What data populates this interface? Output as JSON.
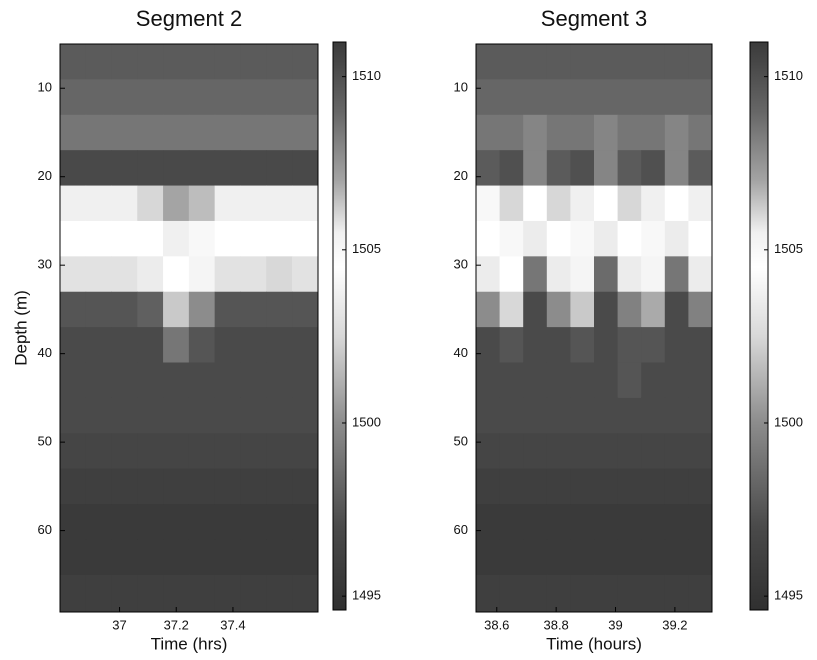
{
  "chart_data": [
    {
      "type": "heatmap",
      "title": "Segment 2",
      "xlabel": "Time (hrs)",
      "ylabel": "Depth (m)",
      "x": [
        36.835,
        36.926,
        37.017,
        37.108,
        37.199,
        37.29,
        37.381,
        37.472,
        37.563,
        37.654
      ],
      "y": [
        7,
        11,
        15,
        19,
        23,
        27,
        31,
        35,
        39,
        43,
        47,
        51,
        55,
        59,
        63,
        67
      ],
      "z": [
        [
          1509.5,
          1509.5,
          1509.5,
          1509.5,
          1509.5,
          1509.5,
          1509.5,
          1509.5,
          1509.5,
          1509.5
        ],
        [
          1509,
          1509,
          1509,
          1509,
          1509,
          1509,
          1509,
          1509,
          1509,
          1509
        ],
        [
          1508.5,
          1508.5,
          1508.5,
          1508.5,
          1508.5,
          1508.5,
          1508.5,
          1508.5,
          1508.5,
          1508.5
        ],
        [
          1510.3,
          1510.3,
          1510.3,
          1510.3,
          1510.3,
          1510.3,
          1510.3,
          1510.3,
          1510.3,
          1510.3
        ],
        [
          1505.5,
          1505.5,
          1505.5,
          1506,
          1507,
          1506.5,
          1505.5,
          1505.5,
          1505.5,
          1505.5
        ],
        [
          1504.5,
          1504.5,
          1504.5,
          1504.5,
          1505.5,
          1505,
          1504.5,
          1504.5,
          1504.5,
          1504.5
        ],
        [
          1503,
          1503,
          1503,
          1503.5,
          1504.5,
          1504,
          1503,
          1503,
          1502.5,
          1503
        ],
        [
          1497.5,
          1497.5,
          1497.5,
          1498,
          1502,
          1500,
          1497.5,
          1497.5,
          1497.5,
          1497.5
        ],
        [
          1497,
          1497,
          1497,
          1497,
          1499,
          1497.5,
          1497,
          1497,
          1497,
          1497
        ],
        [
          1497,
          1497,
          1497,
          1497,
          1497,
          1497,
          1497,
          1497,
          1497,
          1497
        ],
        [
          1497,
          1497,
          1497,
          1497,
          1497,
          1497,
          1497,
          1497,
          1497,
          1497
        ],
        [
          1496.5,
          1496.5,
          1496.5,
          1496.5,
          1496.5,
          1496.5,
          1496.5,
          1496.5,
          1496.5,
          1496.5
        ],
        [
          1496,
          1496,
          1496,
          1496,
          1496,
          1496,
          1496,
          1496,
          1496,
          1496
        ],
        [
          1495.5,
          1495.5,
          1495.5,
          1495.5,
          1495.5,
          1495.5,
          1495.5,
          1495.5,
          1495.5,
          1495.5
        ],
        [
          1495.5,
          1495.5,
          1495.5,
          1495.5,
          1495.5,
          1495.5,
          1495.5,
          1495.5,
          1495.5,
          1495.5
        ],
        [
          1496,
          1496,
          1496,
          1496,
          1496,
          1496,
          1496,
          1496,
          1496,
          1496
        ]
      ],
      "xlim": [
        36.79,
        37.7
      ],
      "ylim": [
        5,
        69.2
      ],
      "y_reversed": true,
      "xticks": [
        37,
        37.2,
        37.4
      ],
      "yticks": [
        10,
        20,
        30,
        40,
        50,
        60
      ],
      "clim": [
        1494.6,
        1511
      ],
      "cticks": [
        1495,
        1500,
        1505,
        1510
      ],
      "colorscale": [
        {
          "value": 1494.6,
          "color": "#303030"
        },
        {
          "value": 1497,
          "color": "#4a4a4a"
        },
        {
          "value": 1500,
          "color": "#8c8c8c"
        },
        {
          "value": 1502.5,
          "color": "#d8d8d8"
        },
        {
          "value": 1504.5,
          "color": "#ffffff"
        },
        {
          "value": 1505.5,
          "color": "#f0f0f0"
        },
        {
          "value": 1507,
          "color": "#a4a4a4"
        },
        {
          "value": 1509,
          "color": "#666666"
        },
        {
          "value": 1511,
          "color": "#3a3a3a"
        }
      ]
    },
    {
      "type": "heatmap",
      "title": "Segment 3",
      "xlabel": "Time (hours)",
      "x": [
        38.57,
        38.649,
        38.729,
        38.808,
        38.888,
        38.967,
        39.047,
        39.126,
        39.206,
        39.285
      ],
      "y": [
        7,
        11,
        15,
        19,
        23,
        27,
        31,
        35,
        39,
        43,
        47,
        51,
        55,
        59,
        63,
        67
      ],
      "z": [
        [
          1509.5,
          1509.5,
          1509.5,
          1509.5,
          1509.5,
          1509.5,
          1509.5,
          1509.5,
          1509.5,
          1509.5
        ],
        [
          1509,
          1509,
          1509,
          1509,
          1509,
          1509,
          1509,
          1509,
          1509,
          1509
        ],
        [
          1508.5,
          1508.5,
          1508,
          1508.5,
          1508.5,
          1508,
          1508.5,
          1508.5,
          1508,
          1508.5
        ],
        [
          1509.5,
          1510,
          1508,
          1509.5,
          1510,
          1508,
          1509.5,
          1510,
          1508,
          1509.5
        ],
        [
          1505,
          1506,
          1504.5,
          1506,
          1505.5,
          1504.5,
          1506,
          1505.5,
          1504.5,
          1505.5
        ],
        [
          1504.5,
          1505,
          1503.5,
          1504.5,
          1505,
          1503.5,
          1504.5,
          1505,
          1503.5,
          1504.5
        ],
        [
          1503.5,
          1504.5,
          1499,
          1503.5,
          1504,
          1498.5,
          1503.5,
          1504,
          1499,
          1503.5
        ],
        [
          1500,
          1502.5,
          1497,
          1500,
          1502,
          1497,
          1499.5,
          1501,
          1497,
          1499.5
        ],
        [
          1497,
          1497.5,
          1497,
          1497,
          1497.5,
          1497,
          1497.5,
          1497.5,
          1497,
          1497
        ],
        [
          1497,
          1497,
          1497,
          1497,
          1497,
          1497,
          1497.5,
          1497,
          1497,
          1497
        ],
        [
          1497,
          1497,
          1497,
          1497,
          1497,
          1497,
          1497,
          1497,
          1497,
          1497
        ],
        [
          1496.5,
          1496.5,
          1496.5,
          1496.5,
          1496.5,
          1496.5,
          1496.5,
          1496.5,
          1496.5,
          1496.5
        ],
        [
          1496,
          1496,
          1496,
          1496,
          1496,
          1496,
          1496,
          1496,
          1496,
          1496
        ],
        [
          1495.5,
          1495.5,
          1495.5,
          1495.5,
          1495.5,
          1495.5,
          1495.5,
          1495.5,
          1495.5,
          1495.5
        ],
        [
          1495.5,
          1495.5,
          1495.5,
          1495.5,
          1495.5,
          1495.5,
          1495.5,
          1495.5,
          1495.5,
          1495.5
        ],
        [
          1496,
          1496,
          1496,
          1496,
          1496,
          1496,
          1496,
          1496,
          1496,
          1496
        ]
      ],
      "xlim": [
        38.53,
        39.325
      ],
      "ylim": [
        5,
        69.2
      ],
      "y_reversed": true,
      "xticks": [
        38.6,
        38.8,
        39,
        39.2
      ],
      "yticks": [
        10,
        20,
        30,
        40,
        50,
        60
      ],
      "clim": [
        1494.6,
        1511
      ],
      "cticks": [
        1495,
        1500,
        1505,
        1510
      ],
      "colorscale": [
        {
          "value": 1494.6,
          "color": "#303030"
        },
        {
          "value": 1497,
          "color": "#4a4a4a"
        },
        {
          "value": 1500,
          "color": "#8c8c8c"
        },
        {
          "value": 1502.5,
          "color": "#d8d8d8"
        },
        {
          "value": 1504.5,
          "color": "#ffffff"
        },
        {
          "value": 1505.5,
          "color": "#f0f0f0"
        },
        {
          "value": 1507,
          "color": "#a4a4a4"
        },
        {
          "value": 1509,
          "color": "#666666"
        },
        {
          "value": 1511,
          "color": "#3a3a3a"
        }
      ]
    }
  ]
}
